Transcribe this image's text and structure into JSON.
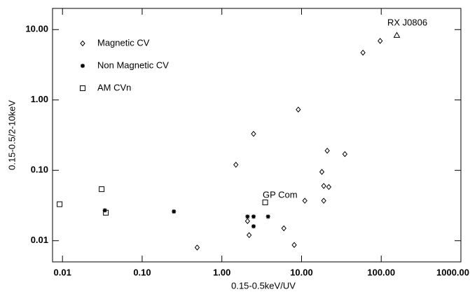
{
  "chart_data": {
    "type": "scatter",
    "x_label": "0.15-0.5keV/UV",
    "y_label": "0.15-0.5/2-10keV",
    "log_x": true,
    "log_y": true,
    "xlim": [
      0.0075,
      1000
    ],
    "ylim": [
      0.005,
      20
    ],
    "xticks": [
      {
        "value": 0.01,
        "label": "0.01"
      },
      {
        "value": 0.1,
        "label": "0.10"
      },
      {
        "value": 1,
        "label": "1.00"
      },
      {
        "value": 10,
        "label": "10.00"
      },
      {
        "value": 100,
        "label": "100.00"
      },
      {
        "value": 1000,
        "label": "1000.00"
      }
    ],
    "yticks": [
      {
        "value": 0.01,
        "label": "0.01"
      },
      {
        "value": 0.1,
        "label": "0.10"
      },
      {
        "value": 1,
        "label": "1.00"
      },
      {
        "value": 10,
        "label": "10.00"
      }
    ],
    "series": [
      {
        "name": "Magnetic CV",
        "marker": "diamond",
        "color": "#000000",
        "x": [
          59,
          97,
          9.1,
          2.5,
          1.5,
          21,
          35,
          18,
          19,
          22,
          11,
          19,
          6.0,
          2.2,
          8.1,
          0.49,
          2.1
        ],
        "values": [
          4.7,
          6.9,
          0.73,
          0.33,
          0.12,
          0.19,
          0.17,
          0.095,
          0.06,
          0.058,
          0.037,
          0.037,
          0.015,
          0.012,
          0.0087,
          0.008,
          0.019
        ]
      },
      {
        "name": "Non Magnetic CV",
        "marker": "asterisk",
        "color": "#000000",
        "x": [
          0.034,
          0.25,
          2.1,
          2.5,
          3.8,
          2.5
        ],
        "values": [
          0.027,
          0.026,
          0.022,
          0.022,
          0.022,
          0.016
        ]
      },
      {
        "name": "AM CVn",
        "marker": "square",
        "color": "#000000",
        "x": [
          0.0092,
          0.031,
          0.035,
          3.5
        ],
        "values": [
          0.033,
          0.054,
          0.025,
          0.035
        ]
      },
      {
        "marker": "triangle",
        "color": "#000000",
        "x": [
          157
        ],
        "values": [
          8.3
        ]
      }
    ],
    "annotations": [
      "RX J0806",
      "GP Com"
    ]
  }
}
